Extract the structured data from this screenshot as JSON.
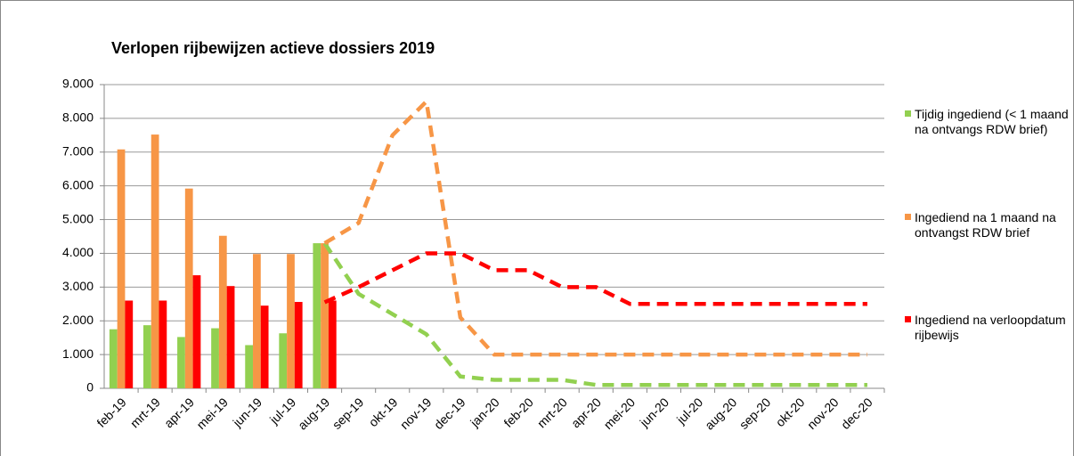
{
  "chart_data": {
    "type": "bar-line",
    "title": "Verlopen rijbewijzen actieve dossiers 2019",
    "categories": [
      "feb-19",
      "mrt-19",
      "apr-19",
      "mei-19",
      "jun-19",
      "jul-19",
      "aug-19",
      "sep-19",
      "okt-19",
      "nov-19",
      "dec-19",
      "jan-20",
      "feb-20",
      "mrt-20",
      "apr-20",
      "mei-20",
      "jun-20",
      "jul-20",
      "aug-20",
      "sep-20",
      "okt-20",
      "nov-20",
      "dec-20"
    ],
    "ylim": [
      0,
      9000
    ],
    "yticks": [
      0,
      {
        "value": 1000,
        "label": "1.000"
      },
      {
        "value": 2000,
        "label": "2.000"
      },
      {
        "value": 3000,
        "label": "3.000"
      },
      {
        "value": 4000,
        "label": "4.000"
      },
      {
        "value": 5000,
        "label": "5.000"
      },
      {
        "value": 6000,
        "label": "6.000"
      },
      {
        "value": 7000,
        "label": "7.000"
      },
      {
        "value": 8000,
        "label": "8.000"
      },
      {
        "value": 9000,
        "label": "9.000"
      }
    ],
    "grid": true,
    "series": [
      {
        "name": "Tijdig ingediend (< 1 maand na ontvangs RDW brief)",
        "color": "#92d050",
        "values": [
          1750,
          1870,
          1520,
          1780,
          1280,
          1630,
          4300,
          null,
          null,
          null,
          null,
          null,
          null,
          null,
          null,
          null,
          null,
          null,
          null,
          null,
          null,
          null,
          null
        ],
        "forecast": [
          null,
          null,
          null,
          null,
          null,
          null,
          4300,
          2800,
          2200,
          1600,
          350,
          250,
          250,
          250,
          100,
          100,
          100,
          100,
          100,
          100,
          100,
          100,
          100
        ]
      },
      {
        "name": "Ingediend na 1 maand na ontvangst RDW brief",
        "color": "#f79646",
        "values": [
          7080,
          7520,
          5920,
          4520,
          3980,
          3980,
          4300,
          null,
          null,
          null,
          null,
          null,
          null,
          null,
          null,
          null,
          null,
          null,
          null,
          null,
          null,
          null,
          null
        ],
        "forecast": [
          null,
          null,
          null,
          null,
          null,
          null,
          4300,
          4900,
          7500,
          8500,
          2100,
          1000,
          1000,
          1000,
          1000,
          1000,
          1000,
          1000,
          1000,
          1000,
          1000,
          1000,
          1000
        ]
      },
      {
        "name": "Ingediend na verloopdatum rijbewijs",
        "color": "#ff0000",
        "values": [
          2600,
          2600,
          3350,
          3030,
          2450,
          2560,
          2600,
          null,
          null,
          null,
          null,
          null,
          null,
          null,
          null,
          null,
          null,
          null,
          null,
          null,
          null,
          null,
          null
        ],
        "forecast": [
          null,
          null,
          null,
          null,
          null,
          null,
          2550,
          3000,
          3500,
          4000,
          4000,
          3500,
          3500,
          3000,
          3000,
          2500,
          2500,
          2500,
          2500,
          2500,
          2500,
          2500,
          2500
        ]
      }
    ]
  }
}
